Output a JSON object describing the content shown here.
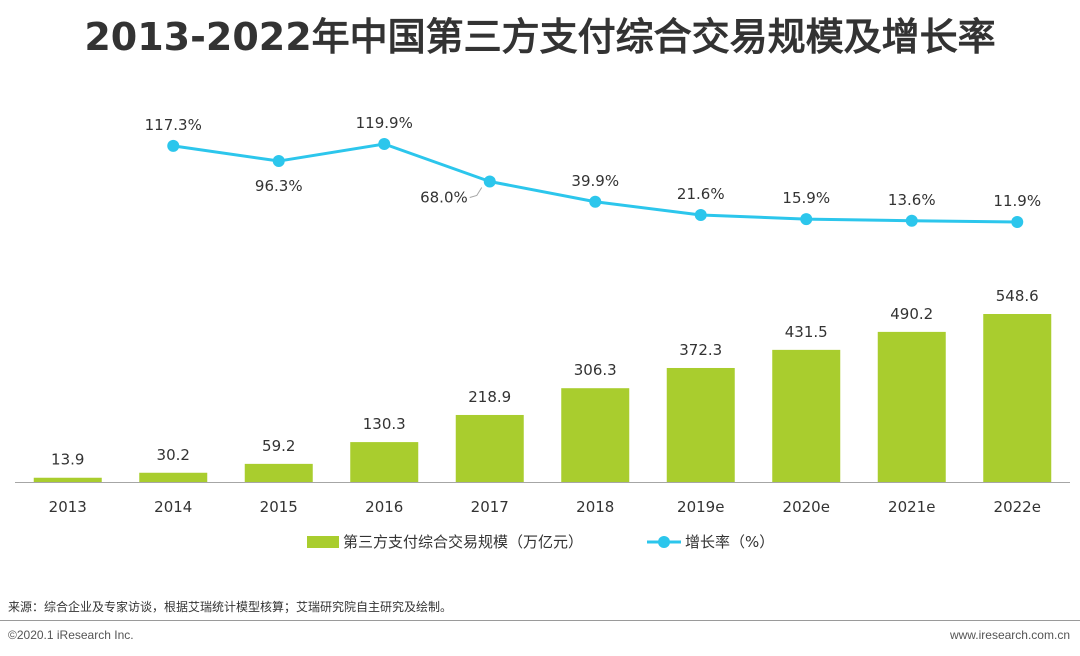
{
  "title": "2013-2022年中国第三方支付综合交易规模及增长率",
  "chart_data": {
    "type": "bar",
    "title": "2013-2022年中国第三方支付综合交易规模及增长率",
    "categories": [
      "2013",
      "2014",
      "2015",
      "2016",
      "2017",
      "2018",
      "2019e",
      "2020e",
      "2021e",
      "2022e"
    ],
    "series": [
      {
        "name": "第三方支付综合交易规模（万亿元）",
        "type": "bar",
        "color": "#a9cd2e",
        "values": [
          13.9,
          30.2,
          59.2,
          130.3,
          218.9,
          306.3,
          372.3,
          431.5,
          490.2,
          548.6
        ],
        "labels": [
          "13.9",
          "30.2",
          "59.2",
          "130.3",
          "218.9",
          "306.3",
          "372.3",
          "431.5",
          "490.2",
          "548.6"
        ]
      },
      {
        "name": "增长率（%）",
        "type": "line",
        "color": "#2cc6ec",
        "values": [
          null,
          117.3,
          96.3,
          119.9,
          68.0,
          39.9,
          21.6,
          15.9,
          13.6,
          11.9
        ],
        "labels": [
          "",
          "117.3%",
          "96.3%",
          "119.9%",
          "68.0%",
          "39.9%",
          "21.6%",
          "15.9%",
          "13.6%",
          "11.9%"
        ]
      }
    ],
    "legend_position": "bottom",
    "grid": false
  },
  "footer": {
    "source": "来源：综合企业及专家访谈，根据艾瑞统计模型核算；艾瑞研究院自主研究及绘制。",
    "copyright": "©2020.1 iResearch Inc.",
    "website": "www.iresearch.com.cn"
  }
}
